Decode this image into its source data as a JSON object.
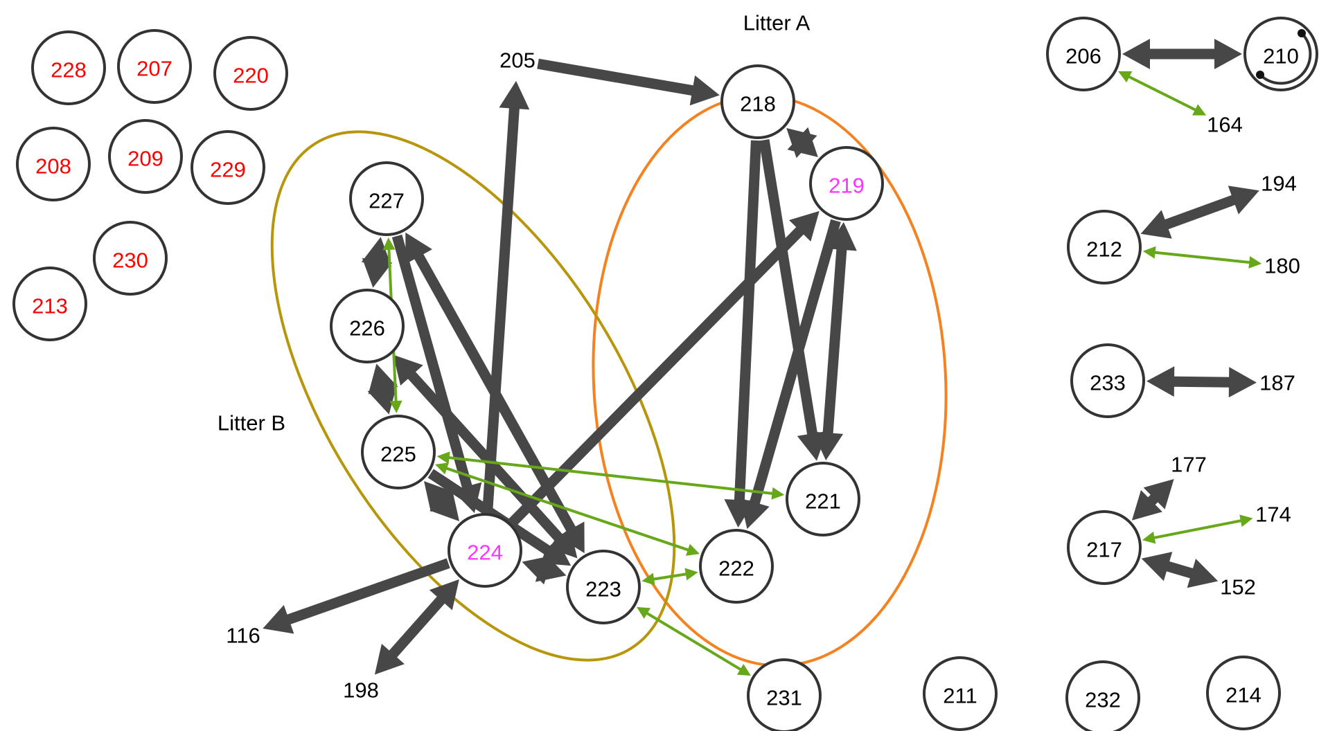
{
  "colors": {
    "node_stroke": "#333333",
    "text_default": "#000000",
    "text_red": "#ff0000",
    "text_magenta": "#ff33ff",
    "thick_edge": "#474747",
    "green_edge": "#66a819",
    "litter_a_ellipse": "#f58220",
    "litter_b_ellipse": "#b8960c"
  },
  "groups": [
    {
      "id": "litterA",
      "label": "Litter A",
      "color": "litter_a_ellipse"
    },
    {
      "id": "litterB",
      "label": "Litter B",
      "color": "litter_b_ellipse"
    }
  ],
  "nodes": [
    {
      "id": "228",
      "label": "228",
      "color": "text_red"
    },
    {
      "id": "207",
      "label": "207",
      "color": "text_red"
    },
    {
      "id": "220",
      "label": "220",
      "color": "text_red"
    },
    {
      "id": "208",
      "label": "208",
      "color": "text_red"
    },
    {
      "id": "209",
      "label": "209",
      "color": "text_red"
    },
    {
      "id": "229",
      "label": "229",
      "color": "text_red"
    },
    {
      "id": "230",
      "label": "230",
      "color": "text_red"
    },
    {
      "id": "213",
      "label": "213",
      "color": "text_red"
    },
    {
      "id": "218",
      "label": "218",
      "color": "text_default"
    },
    {
      "id": "219",
      "label": "219",
      "color": "text_magenta"
    },
    {
      "id": "221",
      "label": "221",
      "color": "text_default"
    },
    {
      "id": "222",
      "label": "222",
      "color": "text_default"
    },
    {
      "id": "227",
      "label": "227",
      "color": "text_default"
    },
    {
      "id": "226",
      "label": "226",
      "color": "text_default"
    },
    {
      "id": "225",
      "label": "225",
      "color": "text_default"
    },
    {
      "id": "224",
      "label": "224",
      "color": "text_magenta"
    },
    {
      "id": "223",
      "label": "223",
      "color": "text_default"
    },
    {
      "id": "231",
      "label": "231",
      "color": "text_default"
    },
    {
      "id": "211",
      "label": "211",
      "color": "text_default"
    },
    {
      "id": "232",
      "label": "232",
      "color": "text_default"
    },
    {
      "id": "214",
      "label": "214",
      "color": "text_default"
    },
    {
      "id": "206",
      "label": "206",
      "color": "text_default"
    },
    {
      "id": "210",
      "label": "210",
      "color": "text_default"
    },
    {
      "id": "212",
      "label": "212",
      "color": "text_default"
    },
    {
      "id": "233",
      "label": "233",
      "color": "text_default"
    },
    {
      "id": "217",
      "label": "217",
      "color": "text_default"
    }
  ],
  "free_labels": [
    {
      "id": "205",
      "label": "205"
    },
    {
      "id": "116",
      "label": "116"
    },
    {
      "id": "198",
      "label": "198"
    },
    {
      "id": "164",
      "label": "164"
    },
    {
      "id": "194",
      "label": "194"
    },
    {
      "id": "180",
      "label": "180"
    },
    {
      "id": "187",
      "label": "187"
    },
    {
      "id": "177",
      "label": "177"
    },
    {
      "id": "174",
      "label": "174"
    },
    {
      "id": "152",
      "label": "152"
    }
  ],
  "edges": [
    {
      "from": "224",
      "to": "205",
      "type": "thick",
      "direction": "forward"
    },
    {
      "from": "218",
      "to": "205",
      "type": "thick",
      "direction": "backward"
    },
    {
      "from": "218",
      "to": "219",
      "type": "thick",
      "direction": "both"
    },
    {
      "from": "218",
      "to": "222",
      "type": "thick",
      "direction": "forward"
    },
    {
      "from": "218",
      "to": "221",
      "type": "thick",
      "direction": "forward"
    },
    {
      "from": "219",
      "to": "221",
      "type": "thick",
      "direction": "both"
    },
    {
      "from": "219",
      "to": "222",
      "type": "thick",
      "direction": "forward"
    },
    {
      "from": "224",
      "to": "219",
      "type": "thick",
      "direction": "forward"
    },
    {
      "from": "227",
      "to": "226",
      "type": "thick",
      "direction": "both"
    },
    {
      "from": "227",
      "to": "224",
      "type": "thick",
      "direction": "forward"
    },
    {
      "from": "227",
      "to": "223",
      "type": "thick",
      "direction": "both"
    },
    {
      "from": "226",
      "to": "225",
      "type": "thick",
      "direction": "both"
    },
    {
      "from": "226",
      "to": "223",
      "type": "thick",
      "direction": "both"
    },
    {
      "from": "225",
      "to": "224",
      "type": "thick",
      "direction": "both"
    },
    {
      "from": "225",
      "to": "223",
      "type": "thick",
      "direction": "forward"
    },
    {
      "from": "224",
      "to": "223",
      "type": "thick",
      "direction": "both"
    },
    {
      "from": "224",
      "to": "116",
      "type": "thick",
      "direction": "forward"
    },
    {
      "from": "224",
      "to": "198",
      "type": "thick",
      "direction": "both"
    },
    {
      "from": "206",
      "to": "210",
      "type": "thick",
      "direction": "both"
    },
    {
      "from": "212",
      "to": "194",
      "type": "thick",
      "direction": "both"
    },
    {
      "from": "233",
      "to": "187",
      "type": "thick",
      "direction": "both"
    },
    {
      "from": "217",
      "to": "177",
      "type": "thick",
      "direction": "both"
    },
    {
      "from": "217",
      "to": "152",
      "type": "thick",
      "direction": "both"
    },
    {
      "from": "227",
      "to": "225",
      "type": "green",
      "direction": "both"
    },
    {
      "from": "225",
      "to": "221",
      "type": "green",
      "direction": "both"
    },
    {
      "from": "225",
      "to": "222",
      "type": "green",
      "direction": "both"
    },
    {
      "from": "223",
      "to": "222",
      "type": "green",
      "direction": "both"
    },
    {
      "from": "223",
      "to": "231",
      "type": "green",
      "direction": "both"
    },
    {
      "from": "206",
      "to": "164",
      "type": "green",
      "direction": "both"
    },
    {
      "from": "212",
      "to": "180",
      "type": "green",
      "direction": "both"
    },
    {
      "from": "217",
      "to": "174",
      "type": "green",
      "direction": "both"
    }
  ]
}
